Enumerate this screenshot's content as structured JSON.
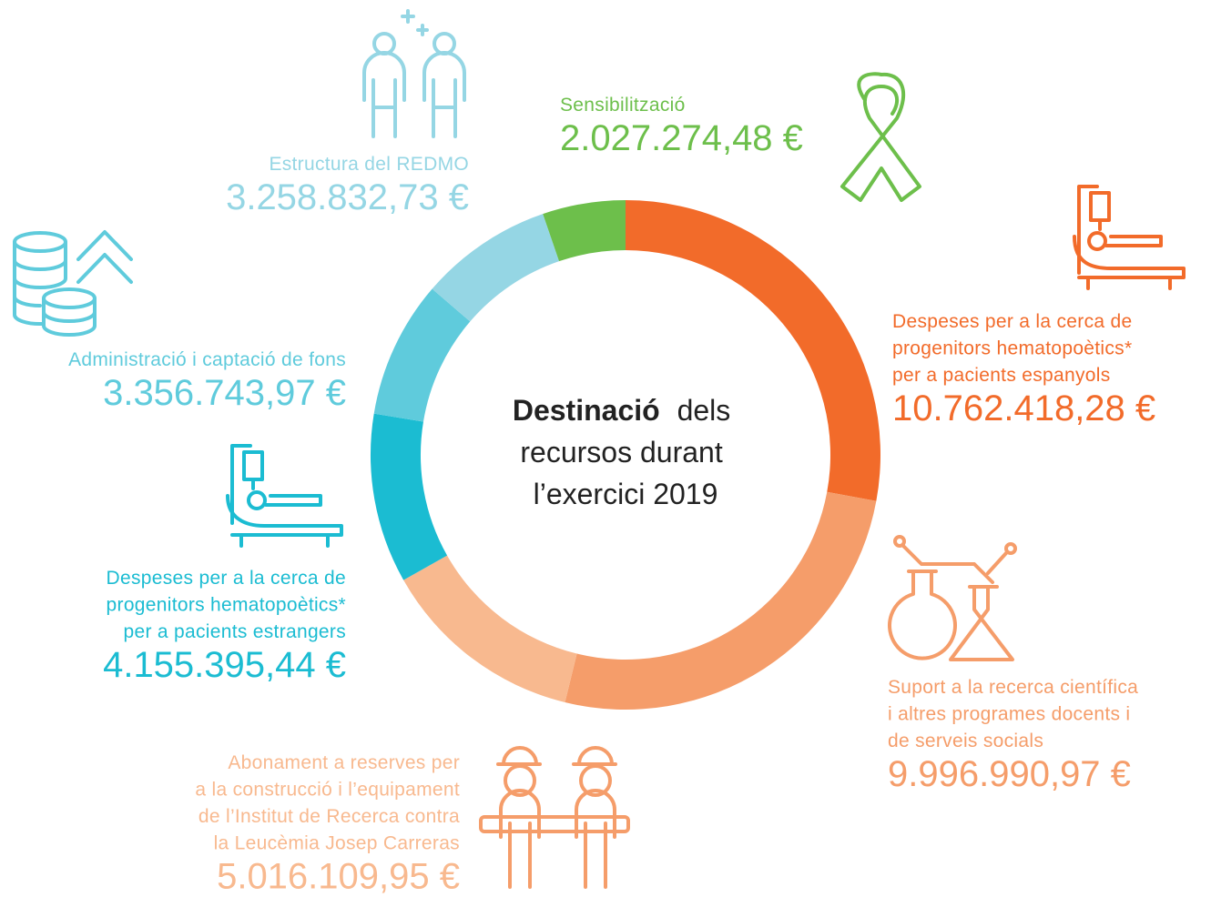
{
  "chart_data": {
    "type": "donut",
    "title_bold": "Destinació",
    "title_lines": [
      "dels",
      "recursos durant",
      "l’exercici 2019"
    ],
    "categories": [
      [
        "Despeses per a la cerca de",
        "progenitors hematopoètics*",
        "per a pacients espanyols"
      ],
      [
        "Suport a la recerca científica",
        "i altres programes docents i",
        "de serveis socials"
      ],
      [
        "Abonament a reserves per",
        "a la construcció i l’equipament",
        "de l’Institut de Recerca contra",
        "la Leucèmia Josep Carreras"
      ],
      [
        "Despeses per a la cerca de",
        "progenitors hematopoètics*",
        "per a pacients estrangers"
      ],
      [
        "Administració i captació de fons"
      ],
      [
        "Estructura del REDMO"
      ],
      [
        "Sensibilització"
      ]
    ],
    "values": [
      10762418.28,
      9996990.97,
      5016109.95,
      4155395.44,
      3356743.97,
      3258832.73,
      2027274.48
    ],
    "value_labels": [
      "10.762.418,28 €",
      "9.996.990,97 €",
      "5.016.109,95 €",
      "4.155.395,44 €",
      "3.356.743,97 €",
      "3.258.832,73 €",
      "2.027.274,48 €"
    ],
    "colors": [
      "#f26b2a",
      "#f59d6a",
      "#f8b98f",
      "#1bbcd2",
      "#5fcbdc",
      "#95d6e4",
      "#6dbf4b"
    ]
  }
}
